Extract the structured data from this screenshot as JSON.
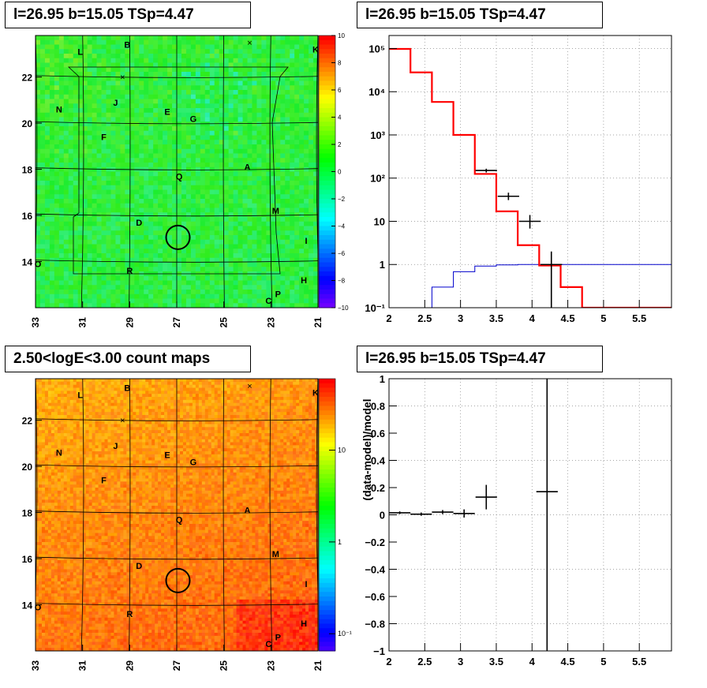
{
  "panels": {
    "tl_title": "l=26.95 b=15.05 TSp=4.47",
    "tr_title": "l=26.95 b=15.05 TSp=4.47",
    "bl_title": "2.50<logE<3.00 count maps",
    "br_title": "l=26.95 b=15.05 TSp=4.47"
  },
  "colors": {
    "model_line": "#ff0000",
    "component_line": "#0000cc",
    "data_points": "#000000"
  },
  "chart_data": [
    {
      "type": "heatmap",
      "name": "residual-significance-map",
      "x_ticks": [
        "33",
        "31",
        "29",
        "27",
        "25",
        "23",
        "21"
      ],
      "x_tick_values": [
        33,
        31,
        29,
        27,
        25,
        23,
        21
      ],
      "xlim": [
        33,
        21
      ],
      "y_ticks": [
        "14",
        "16",
        "18",
        "20",
        "22"
      ],
      "y_tick_values": [
        14,
        16,
        18,
        20,
        22
      ],
      "ylim": [
        12,
        23.8
      ],
      "colorbar_ticks": [
        "10",
        "8",
        "6",
        "4",
        "2",
        "0",
        "−2",
        "−4",
        "−6",
        "−8",
        "−10"
      ],
      "colorbar_values": [
        10,
        8,
        6,
        4,
        2,
        0,
        -2,
        -4,
        -6,
        -8,
        -10
      ],
      "colorbar_range": [
        -10,
        10
      ],
      "source_circle": {
        "l": 26.95,
        "b": 15.05
      },
      "labels": [
        {
          "t": "L",
          "l": 31.1,
          "b": 23.1
        },
        {
          "t": "B",
          "l": 29.1,
          "b": 23.4
        },
        {
          "t": "K",
          "l": 21.1,
          "b": 23.2
        },
        {
          "t": "N",
          "l": 32.0,
          "b": 20.6
        },
        {
          "t": "J",
          "l": 29.6,
          "b": 20.9
        },
        {
          "t": "E",
          "l": 27.4,
          "b": 20.5
        },
        {
          "t": "G",
          "l": 26.3,
          "b": 20.2
        },
        {
          "t": "F",
          "l": 30.1,
          "b": 19.4
        },
        {
          "t": "A",
          "l": 24.0,
          "b": 18.1
        },
        {
          "t": "Q",
          "l": 26.9,
          "b": 17.7
        },
        {
          "t": "M",
          "l": 22.8,
          "b": 16.2
        },
        {
          "t": "D",
          "l": 28.6,
          "b": 15.7
        },
        {
          "t": "I",
          "l": 21.5,
          "b": 14.9
        },
        {
          "t": "O",
          "l": 32.9,
          "b": 13.9
        },
        {
          "t": "R",
          "l": 29.0,
          "b": 13.6
        },
        {
          "t": "H",
          "l": 21.6,
          "b": 13.2
        },
        {
          "t": "P",
          "l": 22.7,
          "b": 12.6
        },
        {
          "t": "C",
          "l": 23.1,
          "b": 12.3
        }
      ],
      "crosses": [
        {
          "l": 23.9,
          "b": 23.5
        },
        {
          "l": 29.3,
          "b": 22.0
        }
      ]
    },
    {
      "type": "line",
      "name": "spectrum",
      "x_ticks": [
        "2",
        "2.5",
        "3",
        "3.5",
        "4",
        "4.5",
        "5",
        "5.5"
      ],
      "x_tick_values": [
        2,
        2.5,
        3,
        3.5,
        4,
        4.5,
        5,
        5.5
      ],
      "xlim": [
        2,
        5.95
      ],
      "y_ticks": [
        "10⁻¹",
        "1",
        "10",
        "10²",
        "10³",
        "10⁴",
        "10⁵"
      ],
      "y_tick_values": [
        0.1,
        1,
        10,
        100,
        1000,
        10000,
        100000
      ],
      "ylim": [
        0.1,
        200000
      ],
      "y_scale": "log",
      "grid": true,
      "series": [
        {
          "role": "model-total",
          "bins": [
            2.0,
            2.3,
            2.6,
            2.9,
            3.2,
            3.5,
            3.8,
            4.1,
            4.4,
            4.7,
            5.95
          ],
          "values": [
            98000,
            28000,
            5800,
            1000,
            125,
            17,
            2.8,
            0.95,
            0.3,
            0.1
          ]
        },
        {
          "role": "model-component",
          "bins": [
            2.6,
            2.9,
            3.2,
            3.5,
            3.8,
            4.1,
            4.4,
            5.95
          ],
          "values": [
            0.3,
            0.68,
            0.92,
            0.98,
            1.0,
            1.0,
            1.0
          ]
        },
        {
          "role": "data",
          "points": [
            {
              "x": 3.36,
              "y": 150,
              "xerr": 0.15,
              "ylo": 135,
              "yhi": 165
            },
            {
              "x": 3.67,
              "y": 38,
              "xerr": 0.15,
              "ylo": 31,
              "yhi": 46
            },
            {
              "x": 3.97,
              "y": 10,
              "xerr": 0.15,
              "ylo": 6.8,
              "yhi": 14
            },
            {
              "x": 4.27,
              "y": 1,
              "xerr": 0.15,
              "ylo": 0.1,
              "yhi": 2
            }
          ]
        }
      ]
    },
    {
      "type": "heatmap",
      "name": "count-map",
      "x_ticks": [
        "33",
        "31",
        "29",
        "27",
        "25",
        "23",
        "21"
      ],
      "x_tick_values": [
        33,
        31,
        29,
        27,
        25,
        23,
        21
      ],
      "xlim": [
        33,
        21
      ],
      "y_ticks": [
        "14",
        "16",
        "18",
        "20",
        "22"
      ],
      "y_tick_values": [
        14,
        16,
        18,
        20,
        22
      ],
      "ylim": [
        12,
        23.8
      ],
      "colorbar_scale": "log",
      "colorbar_ticks": [
        "10",
        "1",
        "10⁻¹"
      ],
      "colorbar_values": [
        10,
        1,
        0.1
      ],
      "source_circle": {
        "l": 26.95,
        "b": 15.05
      }
    },
    {
      "type": "scatter",
      "name": "residuals",
      "ylabel": "(data-model)/model",
      "x_ticks": [
        "2",
        "2.5",
        "3",
        "3.5",
        "4",
        "4.5",
        "5",
        "5.5"
      ],
      "x_tick_values": [
        2,
        2.5,
        3,
        3.5,
        4,
        4.5,
        5,
        5.5
      ],
      "xlim": [
        2,
        5.95
      ],
      "y_ticks": [
        "1",
        "0.8",
        "0.6",
        "0.4",
        "0.2",
        "0",
        "−0.2",
        "−0.4",
        "−0.6",
        "−0.8",
        "−1"
      ],
      "y_tick_values": [
        1,
        0.8,
        0.6,
        0.4,
        0.2,
        0,
        -0.2,
        -0.4,
        -0.6,
        -0.8,
        -1
      ],
      "ylim": [
        -1,
        1
      ],
      "grid": true,
      "points": [
        {
          "x": 2.15,
          "y": 0.015,
          "xerr": 0.15,
          "yerr": 0.01
        },
        {
          "x": 2.45,
          "y": 0.005,
          "xerr": 0.15,
          "yerr": 0.012
        },
        {
          "x": 2.75,
          "y": 0.02,
          "xerr": 0.15,
          "yerr": 0.015
        },
        {
          "x": 3.05,
          "y": 0.01,
          "xerr": 0.15,
          "yerr": 0.03
        },
        {
          "x": 3.36,
          "y": 0.13,
          "xerr": 0.15,
          "yerr": 0.09
        },
        {
          "x": 4.21,
          "y": 0.17,
          "xerr": 0.15,
          "yerr": 1.2
        }
      ]
    }
  ]
}
